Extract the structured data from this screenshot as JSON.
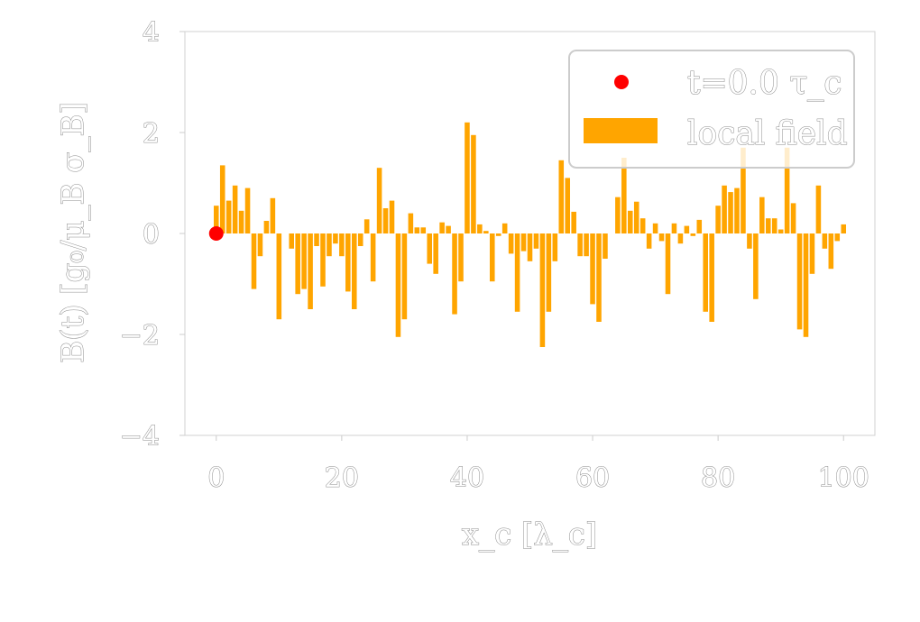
{
  "chart_data": {
    "type": "bar",
    "title": "",
    "xlabel": "x_c [λ_c]",
    "ylabel": "B(t) [g₀/μ_B σ_B]",
    "xlim": [
      -5,
      105
    ],
    "ylim": [
      -4,
      4
    ],
    "xticks": [
      0,
      20,
      40,
      60,
      80,
      100
    ],
    "yticks": [
      -4,
      -2,
      0,
      2,
      4
    ],
    "xtick_labels": [
      "0",
      "20",
      "40",
      "60",
      "80",
      "100"
    ],
    "ytick_labels": [
      "−4",
      "−2",
      "0",
      "2",
      "4"
    ],
    "grid": false,
    "legend_position": "top-right",
    "colors": {
      "bars": "#FFA500",
      "point": "#FF0000",
      "axes": "#d0d0d0",
      "text_outline": "#8a8a8a"
    },
    "series": [
      {
        "name": "local field",
        "kind": "bar",
        "x": [
          0,
          1,
          2,
          3,
          4,
          5,
          6,
          7,
          8,
          9,
          10,
          11,
          12,
          13,
          14,
          15,
          16,
          17,
          18,
          19,
          20,
          21,
          22,
          23,
          24,
          25,
          26,
          27,
          28,
          29,
          30,
          31,
          32,
          33,
          34,
          35,
          36,
          37,
          38,
          39,
          40,
          41,
          42,
          43,
          44,
          45,
          46,
          47,
          48,
          49,
          50,
          51,
          52,
          53,
          54,
          55,
          56,
          57,
          58,
          59,
          60,
          61,
          62,
          63,
          64,
          65,
          66,
          67,
          68,
          69,
          70,
          71,
          72,
          73,
          74,
          75,
          76,
          77,
          78,
          79,
          80,
          81,
          82,
          83,
          84,
          85,
          86,
          87,
          88,
          89,
          90,
          91,
          92,
          93,
          94,
          95,
          96,
          97,
          98,
          99,
          100
        ],
        "values": [
          0.55,
          1.35,
          0.65,
          0.95,
          0.45,
          0.9,
          -1.1,
          -0.45,
          0.25,
          0.7,
          -1.7,
          0.0,
          -0.3,
          -1.2,
          -1.1,
          -1.5,
          -0.25,
          -1.05,
          -0.45,
          -0.2,
          -0.45,
          -1.15,
          -1.5,
          -0.25,
          0.28,
          -0.95,
          1.3,
          0.5,
          0.65,
          -2.05,
          -1.7,
          0.4,
          0.12,
          0.12,
          -0.6,
          -0.8,
          0.22,
          0.15,
          -1.6,
          -0.95,
          2.2,
          1.95,
          0.18,
          0.05,
          -0.95,
          -0.05,
          0.2,
          -0.4,
          -1.55,
          -0.35,
          -0.55,
          -0.3,
          -2.25,
          -1.55,
          -0.55,
          1.45,
          1.1,
          0.43,
          -0.45,
          -0.45,
          -1.4,
          -1.75,
          -0.5,
          0.0,
          0.72,
          1.5,
          0.45,
          0.63,
          0.3,
          -0.3,
          0.2,
          -0.15,
          -1.2,
          0.2,
          -0.2,
          0.15,
          -0.05,
          0.27,
          -1.55,
          -1.75,
          0.55,
          0.95,
          0.82,
          0.9,
          1.7,
          -0.3,
          -1.3,
          0.72,
          0.3,
          0.3,
          0.08,
          1.7,
          0.6,
          -1.9,
          -2.05,
          -0.8,
          0.95,
          -0.3,
          -0.7,
          -0.15,
          0.18
        ]
      },
      {
        "name": "t=0.0 τ_c",
        "kind": "scatter",
        "x": [
          0
        ],
        "values": [
          0
        ]
      }
    ]
  }
}
